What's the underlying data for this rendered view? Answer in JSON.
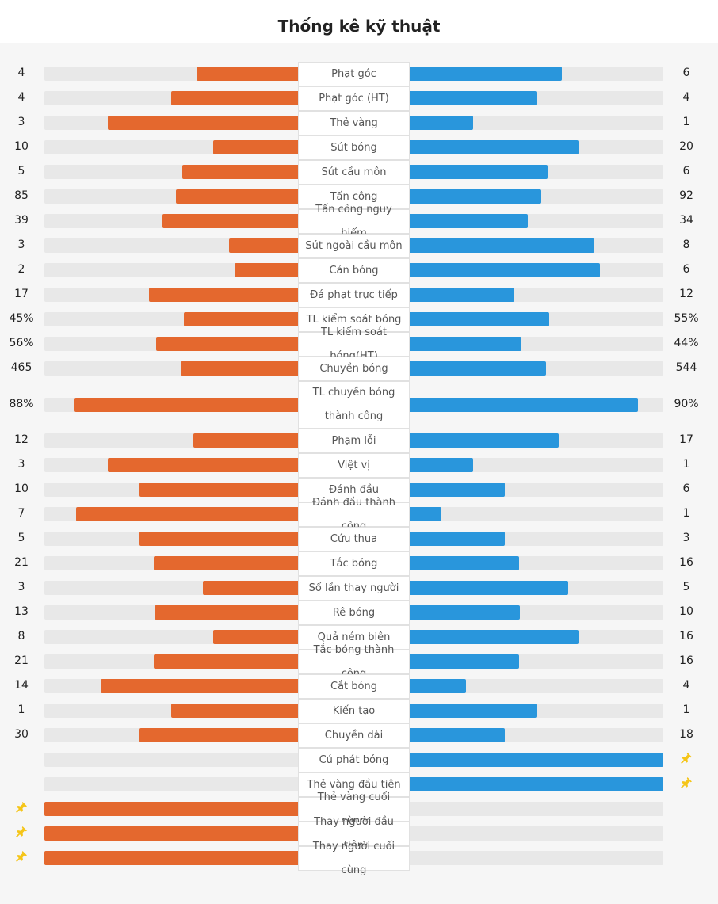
{
  "title": "Thống kê kỹ thuật",
  "colors": {
    "home": "#e4682e",
    "away": "#2996dc",
    "track": "#e8e8e8",
    "pin": "#f5c518"
  },
  "stats": [
    {
      "label": "Phạt góc",
      "home": "4",
      "away": "6",
      "home_share": 0.4,
      "away_share": 0.6
    },
    {
      "label": "Phạt góc (HT)",
      "home": "4",
      "away": "4",
      "home_share": 0.5,
      "away_share": 0.5
    },
    {
      "label": "Thẻ vàng",
      "home": "3",
      "away": "1",
      "home_share": 0.75,
      "away_share": 0.25
    },
    {
      "label": "Sút bóng",
      "home": "10",
      "away": "20",
      "home_share": 0.333,
      "away_share": 0.667
    },
    {
      "label": "Sút cầu môn",
      "home": "5",
      "away": "6",
      "home_share": 0.455,
      "away_share": 0.545
    },
    {
      "label": "Tấn công",
      "home": "85",
      "away": "92",
      "home_share": 0.48,
      "away_share": 0.52
    },
    {
      "label": "Tấn công nguy hiểm",
      "home": "39",
      "away": "34",
      "home_share": 0.534,
      "away_share": 0.466
    },
    {
      "label": "Sút ngoài cầu môn",
      "home": "3",
      "away": "8",
      "home_share": 0.273,
      "away_share": 0.727
    },
    {
      "label": "Cản bóng",
      "home": "2",
      "away": "6",
      "home_share": 0.25,
      "away_share": 0.75
    },
    {
      "label": "Đá phạt trực tiếp",
      "home": "17",
      "away": "12",
      "home_share": 0.586,
      "away_share": 0.414
    },
    {
      "label": "TL kiểm soát bóng",
      "home": "45%",
      "away": "55%",
      "home_share": 0.45,
      "away_share": 0.55
    },
    {
      "label": "TL kiểm soát bóng(HT)",
      "home": "56%",
      "away": "44%",
      "home_share": 0.56,
      "away_share": 0.44
    },
    {
      "label": "Chuyền bóng",
      "home": "465",
      "away": "544",
      "home_share": 0.461,
      "away_share": 0.539
    },
    {
      "label": "TL chuyền bóng thành công",
      "home": "88%",
      "away": "90%",
      "home_share": 0.88,
      "away_share": 0.9
    },
    {
      "label": "Phạm lỗi",
      "home": "12",
      "away": "17",
      "home_share": 0.414,
      "away_share": 0.586
    },
    {
      "label": "Việt vị",
      "home": "3",
      "away": "1",
      "home_share": 0.75,
      "away_share": 0.25
    },
    {
      "label": "Đánh đầu",
      "home": "10",
      "away": "6",
      "home_share": 0.625,
      "away_share": 0.375
    },
    {
      "label": "Đánh đầu thành công",
      "home": "7",
      "away": "1",
      "home_share": 0.875,
      "away_share": 0.125
    },
    {
      "label": "Cứu thua",
      "home": "5",
      "away": "3",
      "home_share": 0.625,
      "away_share": 0.375
    },
    {
      "label": "Tắc bóng",
      "home": "21",
      "away": "16",
      "home_share": 0.568,
      "away_share": 0.432
    },
    {
      "label": "Số lần thay người",
      "home": "3",
      "away": "5",
      "home_share": 0.375,
      "away_share": 0.625
    },
    {
      "label": "Rê bóng",
      "home": "13",
      "away": "10",
      "home_share": 0.565,
      "away_share": 0.435
    },
    {
      "label": "Quả ném biên",
      "home": "8",
      "away": "16",
      "home_share": 0.333,
      "away_share": 0.667
    },
    {
      "label": "Tắc bóng thành công",
      "home": "21",
      "away": "16",
      "home_share": 0.568,
      "away_share": 0.432
    },
    {
      "label": "Cắt bóng",
      "home": "14",
      "away": "4",
      "home_share": 0.778,
      "away_share": 0.222
    },
    {
      "label": "Kiến tạo",
      "home": "1",
      "away": "1",
      "home_share": 0.5,
      "away_share": 0.5
    },
    {
      "label": "Chuyền dài",
      "home": "30",
      "away": "18",
      "home_share": 0.625,
      "away_share": 0.375
    },
    {
      "label": "Cú phát bóng",
      "home": "",
      "away": "",
      "home_share": 0,
      "away_share": 1,
      "pin": "away"
    },
    {
      "label": "Thẻ vàng đầu tiên",
      "home": "",
      "away": "",
      "home_share": 0,
      "away_share": 1,
      "pin": "away"
    },
    {
      "label": "Thẻ vàng cuối cùng",
      "home": "",
      "away": "",
      "home_share": 1,
      "away_share": 0,
      "pin": "home"
    },
    {
      "label": "Thay người đầu tiên",
      "home": "",
      "away": "",
      "home_share": 1,
      "away_share": 0,
      "pin": "home"
    },
    {
      "label": "Thay người cuối cùng",
      "home": "",
      "away": "",
      "home_share": 1,
      "away_share": 0,
      "pin": "home"
    }
  ]
}
